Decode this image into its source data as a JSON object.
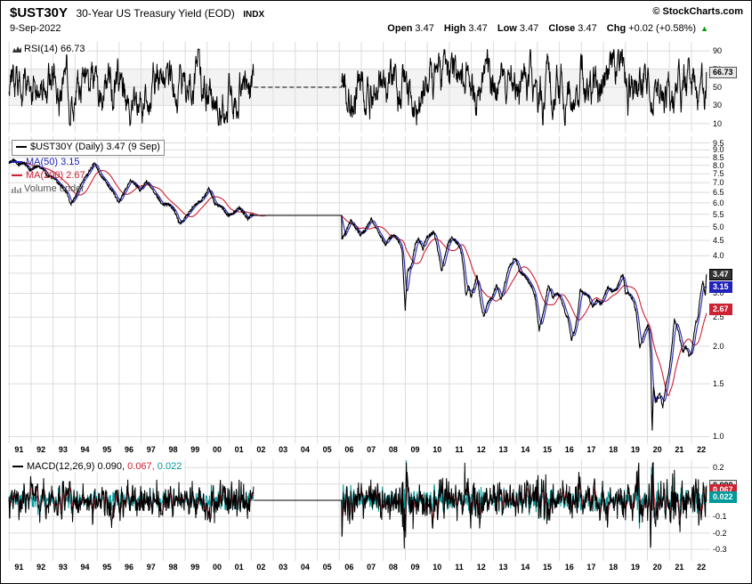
{
  "header": {
    "symbol": "$UST30Y",
    "title": "30-Year US Treasury Yield (EOD)",
    "exchange": "INDX",
    "source": "© StockCharts.com",
    "date": "9-Sep-2022",
    "quote": {
      "open_label": "Open",
      "open_value": "3.47",
      "high_label": "High",
      "high_value": "3.47",
      "low_label": "Low",
      "low_value": "3.47",
      "close_label": "Close",
      "close_value": "3.47",
      "chg_label": "Chg",
      "chg_value": "+0.02 (+0.58%)",
      "chg_arrow": "▲"
    }
  },
  "rsi_panel": {
    "label": "RSI(14) 66.73"
  },
  "main_panel": {
    "legend_primary": "$UST30Y (Daily) 3.47 (9 Sep)",
    "legend_ma50": "MA(50) 3.15",
    "legend_ma200": "MA(200) 2.67",
    "legend_volume": "Volume under"
  },
  "macd_panel": {
    "label": "MACD(12,26,9)",
    "value1": "0.090,",
    "value2": "0.067,",
    "value3": "0.022"
  },
  "colors": {
    "price": "#000000",
    "ma50": "#2222bb",
    "ma200": "#cc2233",
    "macd": "#000000",
    "signal": "#cc2233",
    "hist": "#009999",
    "grid": "#dcdcdc",
    "band": "#f3f3f3",
    "zero_line": "#bbbbbb",
    "chg_up": "#009900"
  },
  "value_boxes": {
    "rsi": {
      "text": "66.73",
      "value": 66.73,
      "bg": "#e8e8e8",
      "fg": "#000000",
      "border": "#555555"
    },
    "price": {
      "text": "3.47",
      "value": 3.47,
      "bg": "#333333",
      "fg": "#ffffff",
      "border": "#000000"
    },
    "ma50": {
      "text": "3.15",
      "value": 3.15,
      "bg": "#2222bb",
      "fg": "#ffffff",
      "border": "#2222bb"
    },
    "ma200": {
      "text": "2.67",
      "value": 2.67,
      "bg": "#cc2233",
      "fg": "#ffffff",
      "border": "#cc2233"
    },
    "macd": {
      "text": "0.090",
      "value": 0.09,
      "bg": "#e8e8e8",
      "fg": "#000000",
      "border": "#555555"
    },
    "signal": {
      "text": "0.067",
      "value": 0.067,
      "bg": "#cc2233",
      "fg": "#ffffff",
      "border": "#cc2233"
    },
    "hist": {
      "text": "0.022",
      "value": 0.022,
      "bg": "#009999",
      "fg": "#ffffff",
      "border": "#009999"
    }
  },
  "x_axis": {
    "years": [
      "91",
      "92",
      "93",
      "94",
      "95",
      "96",
      "97",
      "98",
      "99",
      "00",
      "01",
      "02",
      "03",
      "04",
      "05",
      "06",
      "07",
      "08",
      "09",
      "10",
      "11",
      "12",
      "13",
      "14",
      "15",
      "16",
      "17",
      "18",
      "19",
      "20",
      "21",
      "22"
    ]
  },
  "chart_data": [
    {
      "type": "line",
      "panel": "rsi",
      "title": "RSI(14)",
      "last_value": 66.73,
      "ylim": [
        0,
        100
      ],
      "yticks": [
        90,
        70,
        50,
        30,
        10
      ],
      "band": [
        30,
        70
      ],
      "x_range": [
        1991,
        2022.69
      ],
      "data_gap": [
        2002.12,
        2006.12
      ]
    },
    {
      "type": "line",
      "panel": "price",
      "title": "$UST30Y (Daily)",
      "yscale": "log",
      "ylim": [
        0.95,
        10.0
      ],
      "yticks": [
        "9.5",
        "9.0",
        "8.5",
        "8.0",
        "7.5",
        "7.0",
        "6.5",
        "6.0",
        "5.5",
        "5.0",
        "4.5",
        "4.0",
        "3.5",
        "3.0",
        "2.5",
        "2.0",
        "1.5",
        "1.0"
      ],
      "x_range": [
        1991,
        2022.69
      ],
      "data_gap": [
        2002.12,
        2006.12
      ],
      "gap_level": 5.45,
      "series": [
        {
          "name": "$UST30Y",
          "last": 3.47,
          "anchors": [
            [
              1991.0,
              8.2
            ],
            [
              1991.2,
              8.3
            ],
            [
              1991.45,
              8.05
            ],
            [
              1991.7,
              8.15
            ],
            [
              1991.95,
              7.7
            ],
            [
              1992.2,
              7.95
            ],
            [
              1992.5,
              7.85
            ],
            [
              1992.75,
              7.35
            ],
            [
              1993.0,
              7.3
            ],
            [
              1993.3,
              6.9
            ],
            [
              1993.6,
              6.55
            ],
            [
              1993.8,
              5.95
            ],
            [
              1994.0,
              6.25
            ],
            [
              1994.35,
              7.1
            ],
            [
              1994.6,
              7.55
            ],
            [
              1994.88,
              8.15
            ],
            [
              1995.15,
              7.45
            ],
            [
              1995.45,
              6.95
            ],
            [
              1995.7,
              6.55
            ],
            [
              1995.98,
              6.0
            ],
            [
              1996.2,
              6.45
            ],
            [
              1996.5,
              7.1
            ],
            [
              1996.75,
              6.9
            ],
            [
              1996.95,
              6.6
            ],
            [
              1997.25,
              7.1
            ],
            [
              1997.55,
              6.6
            ],
            [
              1997.95,
              5.9
            ],
            [
              1998.25,
              5.95
            ],
            [
              1998.5,
              5.65
            ],
            [
              1998.75,
              5.1
            ],
            [
              1999.0,
              5.35
            ],
            [
              1999.4,
              5.85
            ],
            [
              1999.75,
              6.15
            ],
            [
              1999.95,
              6.45
            ],
            [
              2000.08,
              6.7
            ],
            [
              2000.35,
              5.95
            ],
            [
              2000.6,
              5.85
            ],
            [
              2000.95,
              5.45
            ],
            [
              2001.2,
              5.55
            ],
            [
              2001.45,
              5.8
            ],
            [
              2001.7,
              5.5
            ],
            [
              2001.85,
              5.3
            ],
            [
              2002.0,
              5.5
            ],
            [
              2002.12,
              5.45
            ],
            [
              2006.12,
              4.55
            ],
            [
              2006.3,
              4.8
            ],
            [
              2006.52,
              5.25
            ],
            [
              2006.75,
              4.95
            ],
            [
              2006.95,
              4.7
            ],
            [
              2007.15,
              4.85
            ],
            [
              2007.45,
              5.3
            ],
            [
              2007.7,
              4.9
            ],
            [
              2007.95,
              4.55
            ],
            [
              2008.1,
              4.35
            ],
            [
              2008.3,
              4.6
            ],
            [
              2008.5,
              4.7
            ],
            [
              2008.7,
              4.45
            ],
            [
              2008.85,
              4.2
            ],
            [
              2008.93,
              3.2
            ],
            [
              2009.0,
              2.65
            ],
            [
              2009.1,
              3.55
            ],
            [
              2009.3,
              3.75
            ],
            [
              2009.45,
              4.35
            ],
            [
              2009.6,
              4.55
            ],
            [
              2009.8,
              4.2
            ],
            [
              2009.95,
              4.6
            ],
            [
              2010.15,
              4.7
            ],
            [
              2010.3,
              4.8
            ],
            [
              2010.5,
              4.1
            ],
            [
              2010.65,
              3.55
            ],
            [
              2010.85,
              4.15
            ],
            [
              2010.95,
              4.4
            ],
            [
              2011.1,
              4.6
            ],
            [
              2011.3,
              4.45
            ],
            [
              2011.5,
              4.25
            ],
            [
              2011.63,
              3.7
            ],
            [
              2011.75,
              2.95
            ],
            [
              2011.88,
              3.2
            ],
            [
              2011.98,
              2.9
            ],
            [
              2012.15,
              3.2
            ],
            [
              2012.25,
              3.45
            ],
            [
              2012.45,
              2.7
            ],
            [
              2012.58,
              2.5
            ],
            [
              2012.7,
              2.75
            ],
            [
              2012.85,
              2.85
            ],
            [
              2012.98,
              2.95
            ],
            [
              2013.15,
              3.2
            ],
            [
              2013.35,
              2.85
            ],
            [
              2013.55,
              3.3
            ],
            [
              2013.7,
              3.65
            ],
            [
              2013.85,
              3.8
            ],
            [
              2013.98,
              3.95
            ],
            [
              2014.2,
              3.55
            ],
            [
              2014.45,
              3.4
            ],
            [
              2014.7,
              3.2
            ],
            [
              2014.9,
              2.9
            ],
            [
              2015.08,
              2.25
            ],
            [
              2015.3,
              2.65
            ],
            [
              2015.5,
              3.2
            ],
            [
              2015.7,
              2.9
            ],
            [
              2015.9,
              3.0
            ],
            [
              2016.05,
              2.9
            ],
            [
              2016.25,
              2.6
            ],
            [
              2016.4,
              2.45
            ],
            [
              2016.55,
              2.1
            ],
            [
              2016.7,
              2.25
            ],
            [
              2016.85,
              2.6
            ],
            [
              2016.95,
              3.1
            ],
            [
              2017.1,
              3.0
            ],
            [
              2017.3,
              2.95
            ],
            [
              2017.5,
              2.7
            ],
            [
              2017.7,
              2.85
            ],
            [
              2017.9,
              2.75
            ],
            [
              2018.05,
              2.95
            ],
            [
              2018.2,
              3.15
            ],
            [
              2018.4,
              3.05
            ],
            [
              2018.6,
              3.1
            ],
            [
              2018.8,
              3.4
            ],
            [
              2018.9,
              3.45
            ],
            [
              2019.0,
              3.0
            ],
            [
              2019.15,
              3.0
            ],
            [
              2019.35,
              2.85
            ],
            [
              2019.5,
              2.55
            ],
            [
              2019.65,
              1.97
            ],
            [
              2019.8,
              2.15
            ],
            [
              2019.95,
              2.3
            ],
            [
              2020.05,
              2.35
            ],
            [
              2020.14,
              1.85
            ],
            [
              2020.21,
              1.0
            ],
            [
              2020.28,
              1.45
            ],
            [
              2020.4,
              1.3
            ],
            [
              2020.55,
              1.4
            ],
            [
              2020.7,
              1.25
            ],
            [
              2020.85,
              1.5
            ],
            [
              2020.98,
              1.65
            ],
            [
              2021.1,
              1.95
            ],
            [
              2021.22,
              2.45
            ],
            [
              2021.4,
              2.25
            ],
            [
              2021.6,
              1.9
            ],
            [
              2021.75,
              2.0
            ],
            [
              2021.9,
              1.85
            ],
            [
              2022.0,
              1.9
            ],
            [
              2022.1,
              2.15
            ],
            [
              2022.2,
              2.4
            ],
            [
              2022.3,
              2.5
            ],
            [
              2022.4,
              2.95
            ],
            [
              2022.46,
              3.1
            ],
            [
              2022.52,
              3.3
            ],
            [
              2022.58,
              3.1
            ],
            [
              2022.63,
              2.95
            ],
            [
              2022.66,
              3.25
            ],
            [
              2022.69,
              3.47
            ]
          ]
        },
        {
          "name": "MA(50)",
          "last": 3.15,
          "derived": "sma50"
        },
        {
          "name": "MA(200)",
          "last": 2.67,
          "derived": "sma200"
        }
      ]
    },
    {
      "type": "line",
      "panel": "macd",
      "title": "MACD(12,26,9)",
      "last_values": {
        "macd": 0.09,
        "signal": 0.067,
        "histogram": 0.022
      },
      "ylim": [
        -0.37,
        0.25
      ],
      "yticks": [
        "0.2",
        "0.1",
        "-0.1",
        "-0.2",
        "-0.3"
      ],
      "zero_line": 0,
      "x_range": [
        1991,
        2022.69
      ],
      "data_gap": [
        2002.12,
        2006.12
      ]
    }
  ]
}
